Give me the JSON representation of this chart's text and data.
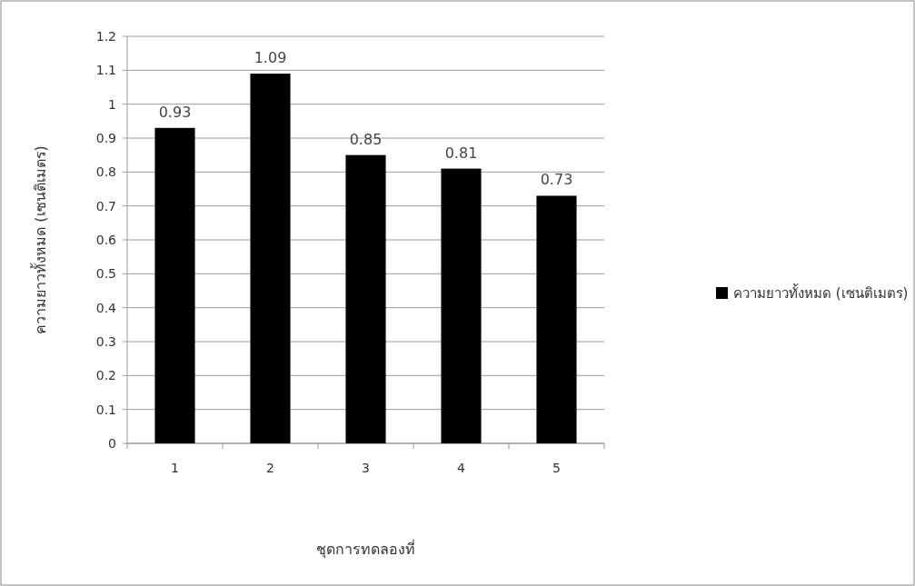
{
  "chart_data": {
    "type": "bar",
    "xlabel": "ชุดการทดลองที่",
    "ylabel": "ความยาวทั้งหมด (เซนติเมตร)",
    "categories": [
      "1",
      "2",
      "3",
      "4",
      "5"
    ],
    "series": [
      {
        "name": "ความยาวทั้งหมด (เซนติเมตร)",
        "color": "#000000",
        "values": [
          0.93,
          1.09,
          0.85,
          0.81,
          0.73
        ]
      }
    ],
    "ylim": [
      0,
      1.2
    ],
    "yticks": [
      0,
      0.1,
      0.2,
      0.3,
      0.4,
      0.5,
      0.6,
      0.7,
      0.8,
      0.9,
      1,
      1.1,
      1.2
    ],
    "grid": "y",
    "legend": "right",
    "data_labels": true
  }
}
